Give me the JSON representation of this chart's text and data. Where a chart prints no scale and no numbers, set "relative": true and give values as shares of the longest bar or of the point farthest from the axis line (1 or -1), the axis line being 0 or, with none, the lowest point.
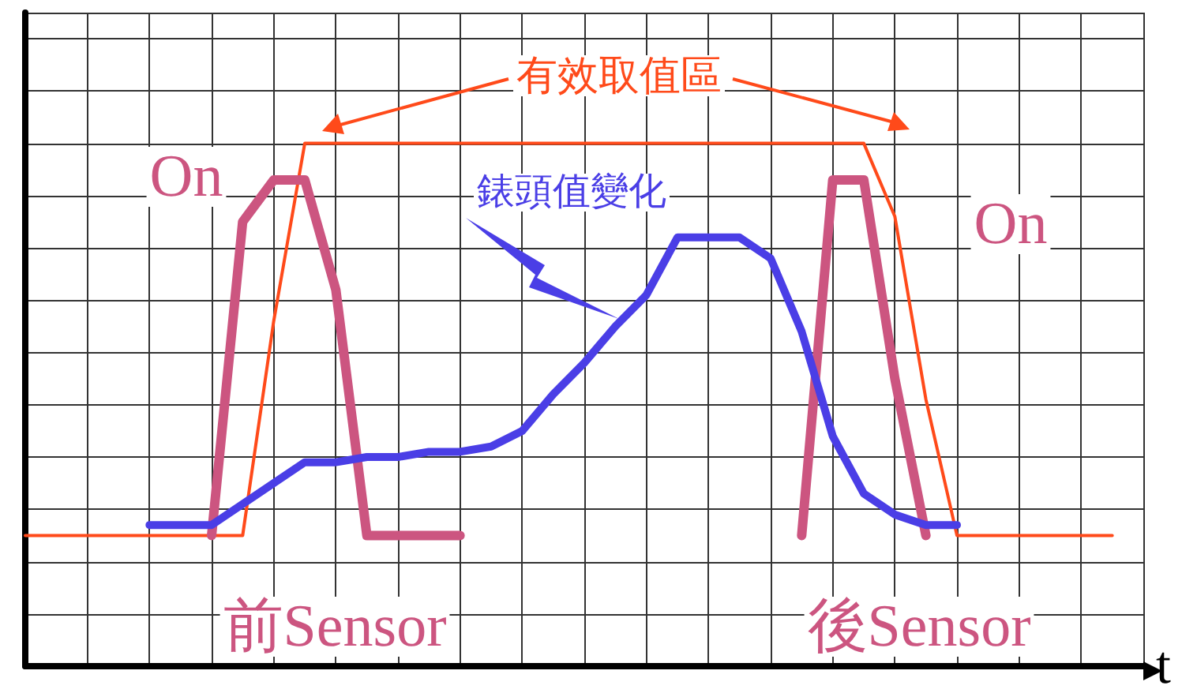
{
  "chart_data": {
    "type": "line",
    "relative": true,
    "xlabel": "t",
    "grid": true,
    "marker": "none",
    "line_style": "solid",
    "annotations": [
      "有效取值區",
      "On",
      "On",
      "錶頭值變化",
      "前Sensor",
      "後Sensor"
    ],
    "categories": [
      null,
      null,
      null,
      null,
      null,
      null,
      null,
      null,
      null,
      null,
      null,
      null,
      null,
      null,
      null,
      null,
      null,
      null,
      null,
      null,
      null,
      null,
      null,
      null,
      null,
      null,
      null,
      null,
      null,
      null,
      null,
      null,
      null,
      null,
      null,
      null,
      null
    ],
    "series": [
      {
        "color": "#ff4a1a",
        "values": [
          0.25,
          0.25,
          0.25,
          0.25,
          0.25,
          0.25,
          0.25,
          0.25,
          0.66,
          1.0,
          1.0,
          1.0,
          1.0,
          1.0,
          1.0,
          1.0,
          1.0,
          1.0,
          1.0,
          1.0,
          1.0,
          1.0,
          1.0,
          1.0,
          1.0,
          1.0,
          1.0,
          1.0,
          0.86,
          0.51,
          0.25,
          0.25,
          0.25,
          0.25,
          0.25,
          0.25,
          null
        ]
      },
      {
        "color": "#cc5580",
        "values": [
          null,
          null,
          null,
          null,
          null,
          null,
          0.25,
          0.85,
          0.93,
          0.93,
          0.72,
          0.25,
          0.25,
          0.25,
          0.25,
          null,
          null,
          null,
          null,
          null,
          null,
          null,
          null,
          null,
          null,
          0.25,
          0.93,
          0.93,
          0.55,
          0.25,
          null,
          null,
          null,
          null,
          null,
          null,
          null
        ]
      },
      {
        "color": "#4a3ee6",
        "values": [
          null,
          null,
          null,
          null,
          0.27,
          0.27,
          0.27,
          0.31,
          0.35,
          0.39,
          0.39,
          0.4,
          0.4,
          0.41,
          0.41,
          0.42,
          0.45,
          0.52,
          0.58,
          0.65,
          0.71,
          0.82,
          0.82,
          0.82,
          0.78,
          0.64,
          0.44,
          0.33,
          0.29,
          0.27,
          0.27,
          null,
          null,
          null,
          null,
          null,
          null
        ]
      }
    ]
  }
}
